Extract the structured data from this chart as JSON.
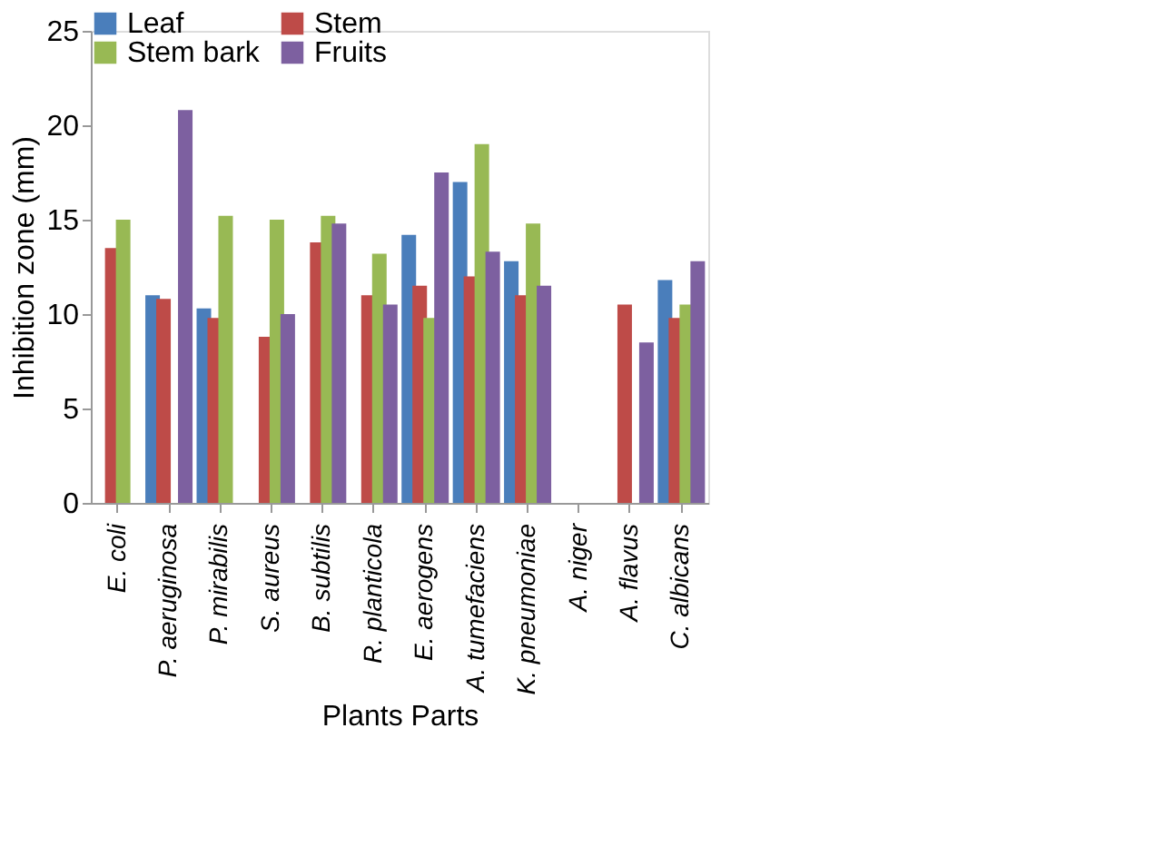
{
  "chart_data": {
    "type": "bar",
    "xlabel": "Plants Parts",
    "ylabel": "Inhibition zone (mm)",
    "categories": [
      "E. coli",
      "P. aeruginosa",
      "P. mirabilis",
      "S. aureus",
      "B. subtilis",
      "R. planticola",
      "E. aerogens",
      "A. tumefaciens",
      "K. pneumoniae",
      "A. niger",
      "A. flavus",
      "C. albicans"
    ],
    "series": [
      {
        "name": "Leaf",
        "color": "#4a7ebb",
        "values": [
          null,
          11,
          10.3,
          null,
          null,
          null,
          14.2,
          17,
          12.8,
          null,
          null,
          11.8
        ]
      },
      {
        "name": "Stem",
        "color": "#be4b48",
        "values": [
          13.5,
          10.8,
          9.8,
          8.8,
          13.8,
          11,
          11.5,
          12,
          11,
          null,
          10.5,
          9.8
        ]
      },
      {
        "name": "Stem bark",
        "color": "#98b954",
        "values": [
          15,
          null,
          15.2,
          15,
          15.2,
          13.2,
          9.8,
          19,
          14.8,
          null,
          null,
          10.5
        ]
      },
      {
        "name": "Fruits",
        "color": "#7d60a0",
        "values": [
          null,
          20.8,
          null,
          10,
          14.8,
          10.5,
          17.5,
          13.3,
          11.5,
          null,
          8.5,
          12.8
        ]
      }
    ],
    "ylim": [
      0,
      25
    ],
    "yticks": [
      0,
      5,
      10,
      15,
      20,
      25
    ],
    "grid": false,
    "legend": "top"
  }
}
